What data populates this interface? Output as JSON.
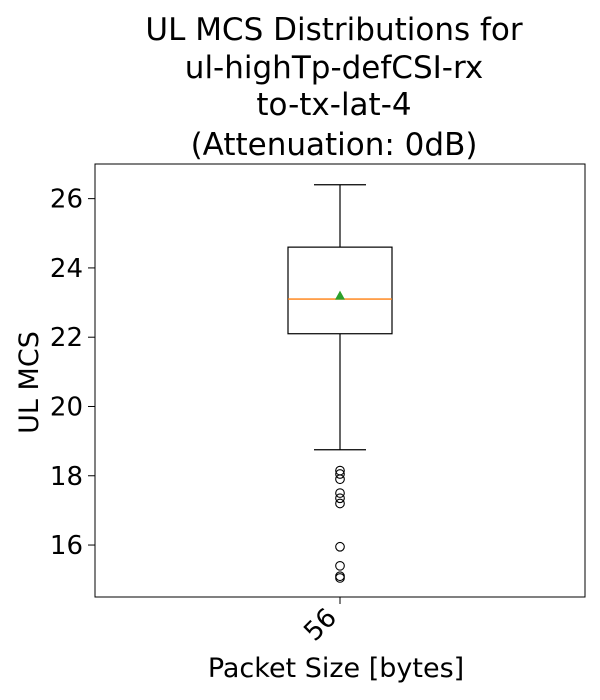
{
  "chart_data": {
    "type": "box",
    "title_lines": [
      "UL MCS Distributions for",
      "ul-highTp-defCSI-rx",
      "to-tx-lat-4",
      "(Attenuation: 0dB)"
    ],
    "xlabel": "Packet Size [bytes]",
    "ylabel": "UL MCS",
    "categories": [
      "56"
    ],
    "ylim": [
      14.5,
      27.0
    ],
    "yticks": [
      16,
      18,
      20,
      22,
      24,
      26
    ],
    "grid": false,
    "boxes": [
      {
        "category": "56",
        "whisker_low": 18.75,
        "q1": 22.1,
        "median": 23.1,
        "q3": 24.6,
        "whisker_high": 26.4,
        "mean": 23.2,
        "outliers": [
          18.15,
          18.05,
          17.9,
          17.5,
          17.35,
          17.2,
          15.95,
          15.4,
          15.1,
          15.05
        ]
      }
    ],
    "colors": {
      "box": "#000000",
      "median": "#ff7f0e",
      "mean": "#2ca02c",
      "outlier": "#000000"
    }
  }
}
